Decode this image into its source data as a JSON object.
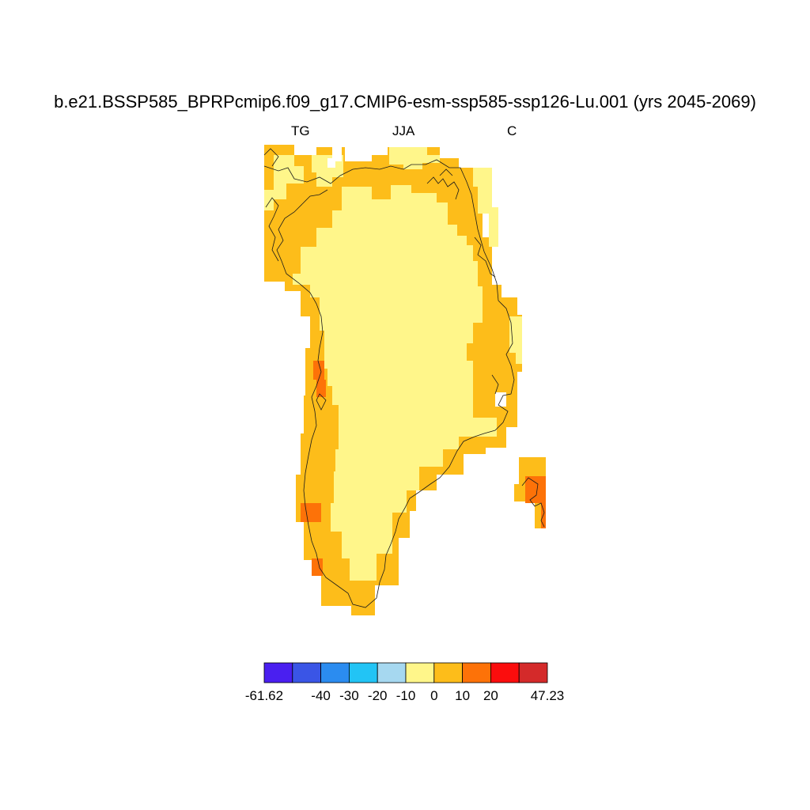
{
  "title": "b.e21.BSSP585_BPRPcmip6.f09_g17.CMIP6-esm-ssp585-ssp126-Lu.001 (yrs 2045-2069)",
  "subtitle_left": "TG",
  "subtitle_center": "JJA",
  "subtitle_right": "C",
  "colorbar": {
    "colors": [
      "#4a1ff0",
      "#3a55e6",
      "#2b8cf0",
      "#22c4f5",
      "#a6d8f0",
      "#fff68a",
      "#fdbd1a",
      "#fd7208",
      "#fb0d0d",
      "#d42a2a"
    ],
    "labels": [
      "-61.62",
      "-40",
      "-30",
      "-20",
      "-10",
      "0",
      "10",
      "20",
      "47.23"
    ]
  },
  "map": {
    "region": "Greenland",
    "fill_colors": {
      "interior": "#fff68a",
      "coast": "#fdbd1a",
      "hot": "#fd7208",
      "coastline": "#1a1a1a"
    }
  }
}
